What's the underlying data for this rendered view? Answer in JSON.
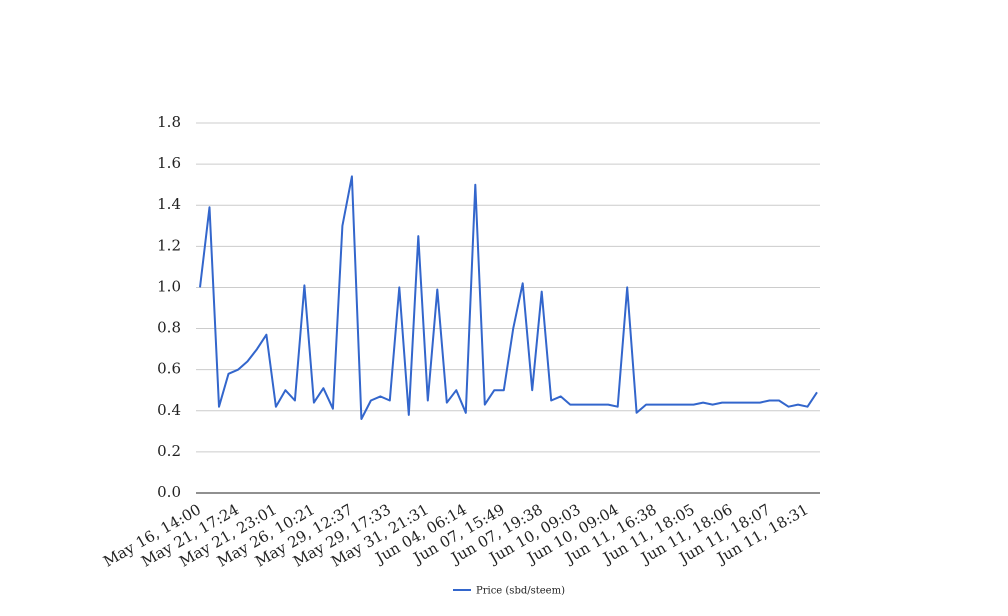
{
  "chart_data": {
    "type": "line",
    "categories": [
      "May 16, 14:00",
      null,
      null,
      null,
      "May 21, 17:24",
      null,
      null,
      null,
      "May 21, 23:01",
      null,
      null,
      null,
      "May 26, 10:21",
      null,
      null,
      null,
      "May 29, 12:37",
      null,
      null,
      null,
      "May 29, 17:33",
      null,
      null,
      null,
      "May 31, 21:31",
      null,
      null,
      null,
      "Jun 04, 06:14",
      null,
      null,
      null,
      "Jun 07, 15:49",
      null,
      null,
      null,
      "Jun 07, 19:38",
      null,
      null,
      null,
      "Jun 10, 09:03",
      null,
      null,
      null,
      "Jun 10, 09:04",
      null,
      null,
      null,
      "Jun 11, 16:38",
      null,
      null,
      null,
      "Jun 11, 18:05",
      null,
      null,
      null,
      "Jun 11, 18:06",
      null,
      null,
      null,
      "Jun 11, 18:07",
      null,
      null,
      null,
      "Jun 11, 18:31",
      null
    ],
    "series": [
      {
        "name": "Price (sbd/steem)",
        "color": "#3366cc",
        "values": [
          1.0,
          1.39,
          0.42,
          0.58,
          0.6,
          0.64,
          0.7,
          0.77,
          0.42,
          0.5,
          0.45,
          1.01,
          0.44,
          0.51,
          0.41,
          1.3,
          1.54,
          0.36,
          0.45,
          0.47,
          0.45,
          1.0,
          0.38,
          1.25,
          0.45,
          0.99,
          0.44,
          0.5,
          0.39,
          1.5,
          0.43,
          0.5,
          0.5,
          0.8,
          1.02,
          0.5,
          0.98,
          0.45,
          0.47,
          0.43,
          0.43,
          0.43,
          0.43,
          0.43,
          0.42,
          1.0,
          0.39,
          0.43,
          0.43,
          0.43,
          0.43,
          0.43,
          0.43,
          0.44,
          0.43,
          0.44,
          0.44,
          0.44,
          0.44,
          0.44,
          0.45,
          0.45,
          0.42,
          0.43,
          0.42,
          0.49
        ]
      }
    ],
    "ylim": [
      0,
      1.8
    ],
    "yticks": [
      {
        "value": 0,
        "label": "0.0"
      },
      0.2,
      0.4,
      0.6,
      0.8,
      {
        "value": 1,
        "label": "1.0"
      },
      1.2,
      1.4,
      1.6,
      1.8
    ],
    "grid": true,
    "legend": "bottom"
  }
}
